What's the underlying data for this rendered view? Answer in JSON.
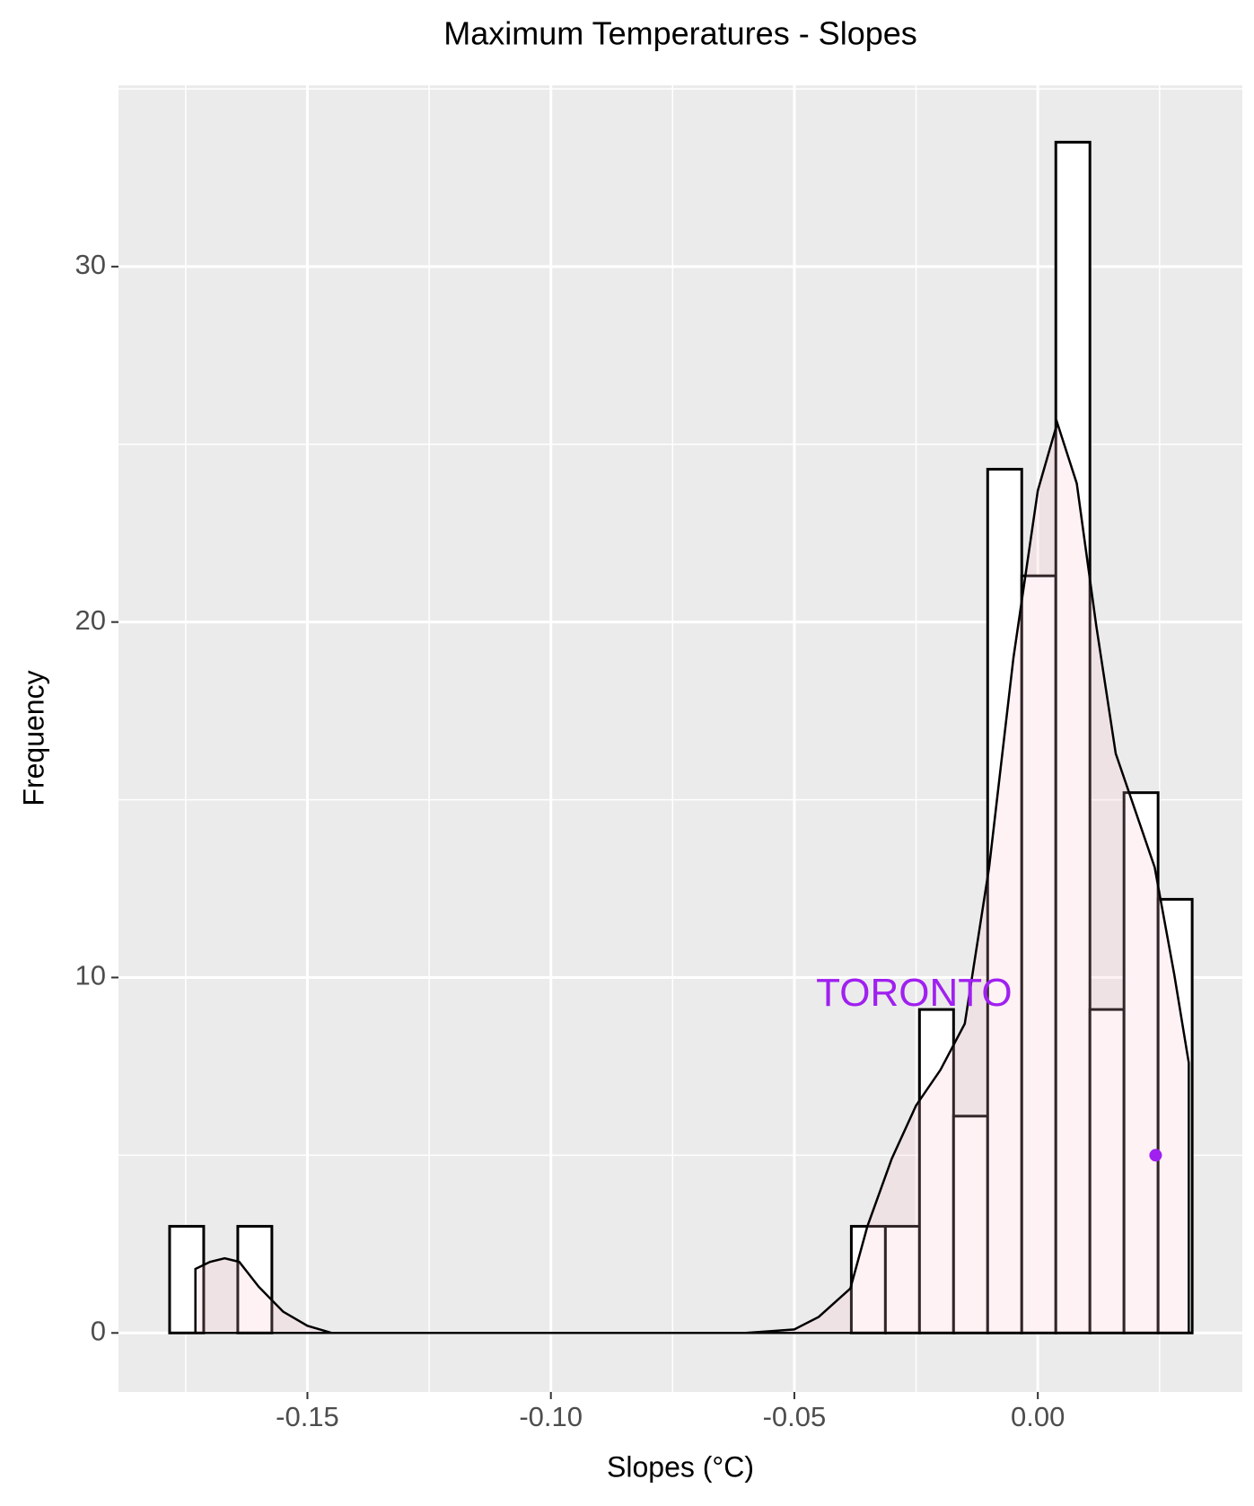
{
  "chart_data": {
    "type": "histogram",
    "title": "Maximum Temperatures -  Slopes",
    "x_label": "Slopes (°C)",
    "y_label": "Frequency",
    "bins": [
      -0.1783,
      -0.1713,
      -0.1643,
      -0.1573,
      -0.1503,
      -0.1433,
      -0.1363,
      -0.1293,
      -0.1223,
      -0.1153,
      -0.1083,
      -0.1013,
      -0.0943,
      -0.0873,
      -0.0803,
      -0.0733,
      -0.0663,
      -0.0593,
      -0.0523,
      -0.0453,
      -0.0383,
      -0.0313,
      -0.0243,
      -0.0173,
      -0.0103,
      -0.0033,
      0.0037,
      0.0107,
      0.0177,
      0.0247,
      0.0317
    ],
    "values": [
      3,
      0,
      3,
      0,
      0,
      0,
      0,
      0,
      0,
      0,
      0,
      0,
      0,
      0,
      0,
      0,
      0,
      0,
      0,
      0,
      3,
      3,
      9.1,
      6.1,
      24.3,
      21.3,
      33.5,
      9.1,
      15.2,
      12.2
    ],
    "bar_color": "#ffffff",
    "density": {
      "x": [
        -0.173,
        -0.17,
        -0.167,
        -0.164,
        -0.16,
        -0.155,
        -0.15,
        -0.145,
        -0.06,
        -0.055,
        -0.05,
        -0.045,
        -0.0385,
        -0.035,
        -0.03,
        -0.025,
        -0.02,
        -0.015,
        -0.01,
        -0.005,
        0,
        0.004,
        0.008,
        0.012,
        0.016,
        0.02,
        0.024,
        0.028,
        0.031
      ],
      "y": [
        1.8,
        2.0,
        2.1,
        2.0,
        1.3,
        0.6,
        0.2,
        0,
        0,
        0.05,
        0.1,
        0.45,
        1.25,
        3.0,
        4.9,
        6.4,
        7.4,
        8.7,
        13.1,
        19.0,
        23.7,
        25.6,
        23.9,
        19.9,
        16.3,
        14.7,
        13.1,
        10.1,
        7.6
      ],
      "fill": "#ffc0cb"
    },
    "point": {
      "x": 0.0242,
      "y": 5.0,
      "color": "#a020f0"
    },
    "annotation": {
      "text": "TORONTO",
      "x": -0.0254,
      "y": 9.5,
      "color": "#a020f0"
    },
    "xlim": [
      -0.1888,
      0.042
    ],
    "ylim": [
      -1.66,
      35.1
    ],
    "xticks": [
      {
        "value": -0.15,
        "label": "-0.15"
      },
      {
        "value": -0.1,
        "label": "-0.10"
      },
      {
        "value": -0.05,
        "label": "-0.05"
      },
      {
        "value": 0,
        "label": "0.00"
      }
    ],
    "yticks": [
      0,
      10,
      20,
      30
    ],
    "x_minor_ticks": [
      -0.175,
      -0.125,
      -0.075,
      -0.025,
      0.025
    ],
    "y_minor_ticks": [
      5,
      15,
      25,
      35
    ],
    "grid": true
  }
}
